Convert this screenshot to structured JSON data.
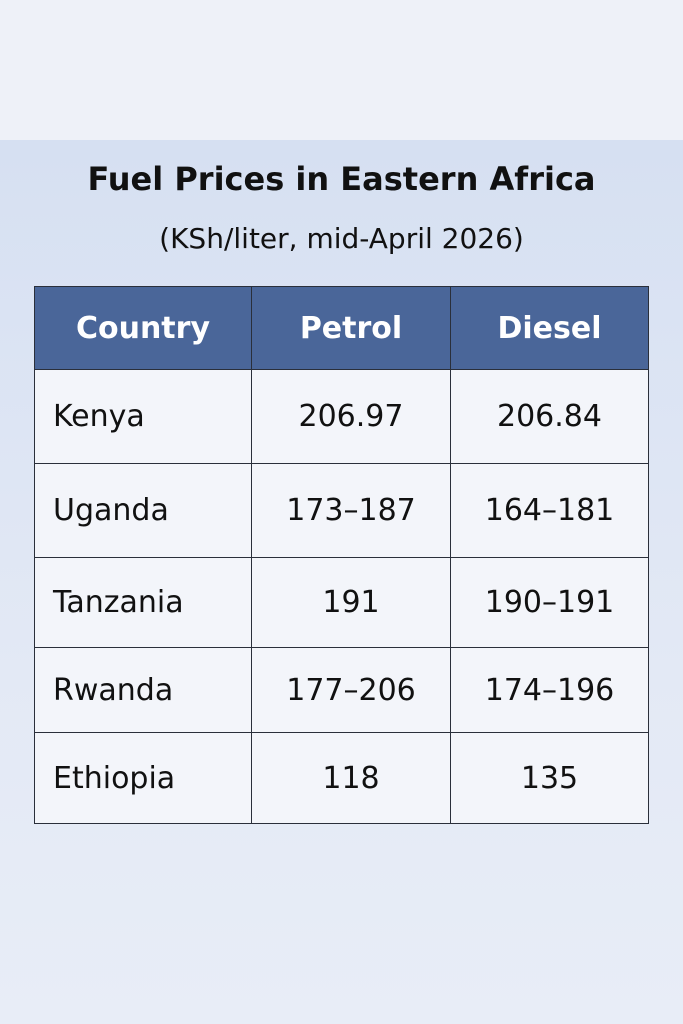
{
  "header": {
    "title": "Fuel Prices in Eastern Africa",
    "subtitle": "(KSh/liter, mid-April 2026)"
  },
  "table": {
    "columns": [
      "Country",
      "Petrol",
      "Diesel"
    ],
    "rows": [
      [
        "Kenya",
        "206.97",
        "206.84"
      ],
      [
        "Uganda",
        "173–187",
        "164–181"
      ],
      [
        "Tanzania",
        "191",
        "190–191"
      ],
      [
        "Rwanda",
        "177–206",
        "174–196"
      ],
      [
        "Ethiopia",
        "118",
        "135"
      ]
    ]
  }
}
